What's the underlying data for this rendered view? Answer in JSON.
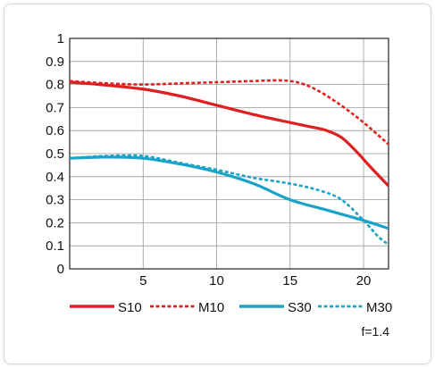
{
  "chart_data": {
    "type": "line",
    "xlim": [
      0,
      21.7
    ],
    "ylim": [
      0,
      1
    ],
    "xticks": [
      5,
      10,
      15,
      20
    ],
    "yticks": [
      0,
      0.1,
      0.2,
      0.3,
      0.4,
      0.5,
      0.6,
      0.7,
      0.8,
      0.9,
      1
    ],
    "ytick_labels": [
      "0",
      "0.1",
      "0.2",
      "0.3",
      "0.4",
      "0.5",
      "0.6",
      "0.7",
      "0.8",
      "0.9",
      "1"
    ],
    "xtick_labels": [
      "5",
      "10",
      "15",
      "20"
    ],
    "grid": true,
    "legend_placement": "bottom",
    "series": [
      {
        "name": "S10",
        "color": "#e02020",
        "dash": "solid",
        "x": [
          0,
          2,
          5,
          7.5,
          10,
          12.5,
          15,
          16.5,
          17.5,
          18.5,
          19.5,
          20.5,
          21.7
        ],
        "y": [
          0.81,
          0.8,
          0.78,
          0.75,
          0.71,
          0.67,
          0.635,
          0.615,
          0.6,
          0.57,
          0.51,
          0.44,
          0.36
        ]
      },
      {
        "name": "M10",
        "color": "#e02020",
        "dash": "dashed",
        "x": [
          0,
          2.5,
          5,
          7.5,
          10,
          12.5,
          14,
          15,
          16,
          17,
          18,
          19,
          20,
          21,
          21.7
        ],
        "y": [
          0.815,
          0.805,
          0.8,
          0.805,
          0.81,
          0.815,
          0.818,
          0.815,
          0.8,
          0.77,
          0.73,
          0.685,
          0.635,
          0.58,
          0.54
        ]
      },
      {
        "name": "S30",
        "color": "#1aa3c8",
        "dash": "solid",
        "x": [
          0,
          2.5,
          5,
          7.5,
          10,
          12.5,
          15,
          17.5,
          20,
          21.7
        ],
        "y": [
          0.48,
          0.485,
          0.48,
          0.455,
          0.42,
          0.37,
          0.3,
          0.255,
          0.21,
          0.175
        ]
      },
      {
        "name": "M30",
        "color": "#1aa3c8",
        "dash": "dashed",
        "x": [
          0,
          2.5,
          5,
          7.5,
          10,
          12.5,
          15,
          17,
          18.5,
          20,
          21,
          21.7
        ],
        "y": [
          0.48,
          0.49,
          0.49,
          0.46,
          0.43,
          0.395,
          0.37,
          0.34,
          0.3,
          0.21,
          0.14,
          0.105
        ]
      }
    ],
    "annotation": "f=1.4"
  }
}
